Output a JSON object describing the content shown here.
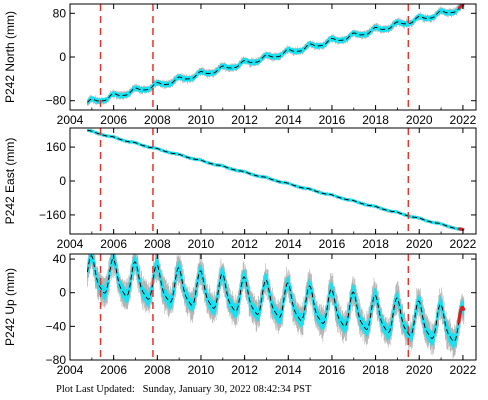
{
  "colors": {
    "band": "#16e2f2",
    "error": "#b5b5b5",
    "model": "#000000",
    "events": "#e8322a",
    "recent": "#d81e1e",
    "axis": "#000000"
  },
  "footer": {
    "label": "Plot Last Updated:",
    "date": "Sunday, January 30, 2022 08:42:34 PST"
  },
  "chart_data": [
    {
      "type": "line",
      "ylabel": "P242 North (mm)",
      "xlim": [
        2004,
        2022.6
      ],
      "ylim": [
        -97,
        97
      ],
      "xticks": [
        2004,
        2006,
        2008,
        2010,
        2012,
        2014,
        2016,
        2018,
        2020,
        2022
      ],
      "yticks": [
        -80,
        0,
        80
      ],
      "grid": false,
      "event_lines": [
        2005.4,
        2007.8,
        2019.5
      ],
      "series": {
        "start": 2004.8,
        "end": 2022.05,
        "start_value": -84,
        "end_value": 90,
        "seasonal_amplitude": 4,
        "band_halfwidth": 4,
        "error_halfwidth": 5,
        "recent_from": 2021.8
      }
    },
    {
      "type": "line",
      "ylabel": "P242 East (mm)",
      "xlim": [
        2004,
        2022.6
      ],
      "ylim": [
        -250,
        250
      ],
      "xticks": [
        2004,
        2006,
        2008,
        2010,
        2012,
        2014,
        2016,
        2018,
        2020,
        2022
      ],
      "yticks": [
        -160,
        0,
        160
      ],
      "grid": false,
      "event_lines": [
        2005.4,
        2007.8,
        2019.5
      ],
      "series": {
        "start": 2004.8,
        "end": 2022.05,
        "start_value": 238,
        "end_value": -233,
        "seasonal_amplitude": 2,
        "band_halfwidth": 5,
        "error_halfwidth": 6,
        "recent_from": 2021.8
      }
    },
    {
      "type": "line",
      "ylabel": "P242 Up (mm)",
      "xlim": [
        2004,
        2022.6
      ],
      "ylim": [
        -80,
        46
      ],
      "xticks": [
        2004,
        2006,
        2008,
        2010,
        2012,
        2014,
        2016,
        2018,
        2020,
        2022
      ],
      "yticks": [
        -80,
        -40,
        0,
        40
      ],
      "grid": false,
      "event_lines": [
        2005.4,
        2007.8,
        2019.5
      ],
      "series": {
        "start": 2004.8,
        "end": 2022.05,
        "start_value": 20,
        "end_value": -42,
        "seasonal_amplitude": 20,
        "band_halfwidth": 7,
        "error_halfwidth": 13,
        "recent_from": 2021.8
      }
    }
  ]
}
